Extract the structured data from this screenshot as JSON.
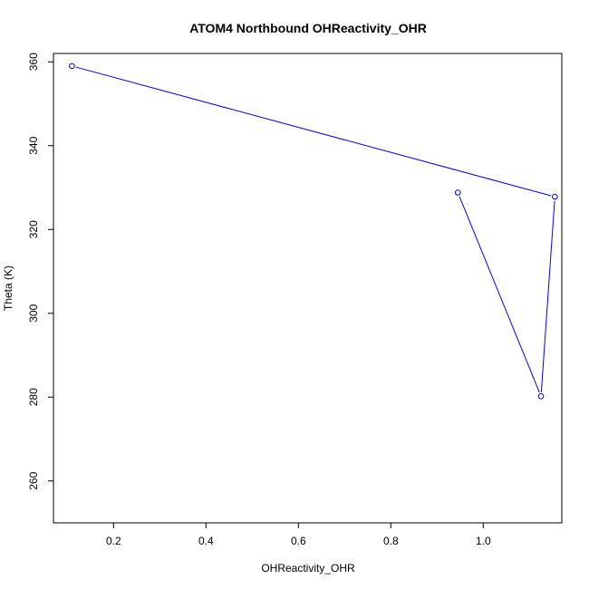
{
  "chart_data": {
    "type": "line",
    "title": "ATOM4 Northbound OHReactivity_OHR",
    "xlabel": "OHReactivity_OHR",
    "ylabel": "Theta (K)",
    "xlim": [
      0.07,
      1.17
    ],
    "ylim": [
      250,
      362
    ],
    "x_ticks": [
      0.2,
      0.4,
      0.6,
      0.8,
      1.0
    ],
    "x_tick_labels": [
      "0.2",
      "0.4",
      "0.6",
      "0.8",
      "1.0"
    ],
    "y_ticks": [
      260,
      280,
      300,
      320,
      340,
      360
    ],
    "y_tick_labels": [
      "260",
      "280",
      "300",
      "320",
      "340",
      "360"
    ],
    "grid": false,
    "series": [
      {
        "color": "#0000ff",
        "marker": "open-circle",
        "x": [
          0.11,
          1.155,
          1.125,
          0.945
        ],
        "y": [
          359,
          327.8,
          280.2,
          328.8
        ]
      }
    ]
  }
}
